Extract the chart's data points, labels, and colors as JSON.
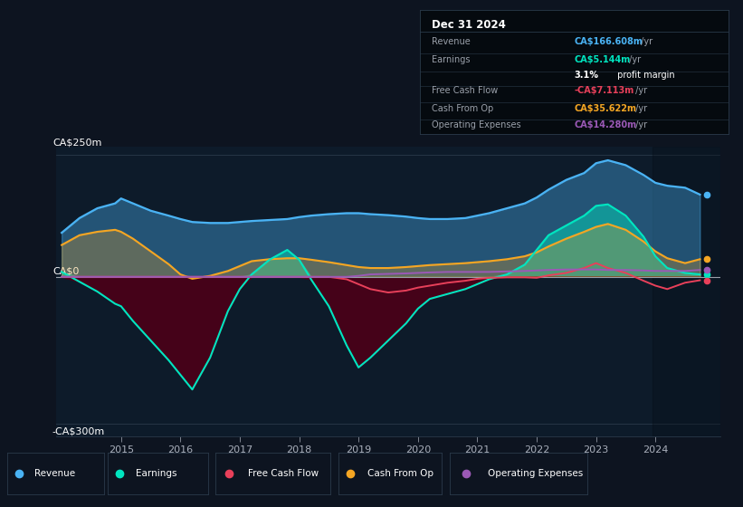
{
  "bg_color": "#0d1420",
  "plot_bg_color": "#0d1b2a",
  "colors": {
    "revenue": "#4ab3f4",
    "earnings": "#00e5c0",
    "free_cash_flow": "#e8405a",
    "cash_from_op": "#f5a623",
    "operating_expenses": "#9b59b6"
  },
  "ylabel_top": "CA$250m",
  "ylabel_zero": "CA$0",
  "ylabel_bottom": "-CA$300m",
  "year_ticks": [
    2015,
    2016,
    2017,
    2018,
    2019,
    2020,
    2021,
    2022,
    2023,
    2024
  ],
  "years": [
    2014.0,
    2014.3,
    2014.6,
    2014.9,
    2015.0,
    2015.2,
    2015.5,
    2015.8,
    2016.0,
    2016.2,
    2016.5,
    2016.8,
    2017.0,
    2017.2,
    2017.5,
    2017.8,
    2018.0,
    2018.2,
    2018.5,
    2018.8,
    2019.0,
    2019.2,
    2019.5,
    2019.8,
    2020.0,
    2020.2,
    2020.5,
    2020.8,
    2021.0,
    2021.2,
    2021.5,
    2021.8,
    2022.0,
    2022.2,
    2022.5,
    2022.8,
    2023.0,
    2023.2,
    2023.5,
    2023.8,
    2024.0,
    2024.2,
    2024.5,
    2024.75
  ],
  "revenue": [
    90,
    120,
    140,
    150,
    160,
    150,
    135,
    125,
    118,
    112,
    110,
    110,
    112,
    114,
    116,
    118,
    122,
    125,
    128,
    130,
    130,
    128,
    126,
    123,
    120,
    118,
    118,
    120,
    125,
    130,
    140,
    150,
    162,
    178,
    198,
    212,
    232,
    238,
    228,
    208,
    192,
    186,
    182,
    168
  ],
  "earnings": [
    10,
    -10,
    -30,
    -55,
    -60,
    -90,
    -130,
    -170,
    -200,
    -230,
    -165,
    -70,
    -25,
    5,
    35,
    55,
    35,
    -5,
    -60,
    -140,
    -185,
    -165,
    -130,
    -95,
    -65,
    -45,
    -35,
    -25,
    -15,
    -5,
    5,
    25,
    55,
    85,
    105,
    125,
    145,
    148,
    125,
    82,
    42,
    18,
    8,
    5
  ],
  "free_cash_flow": [
    0,
    0,
    0,
    0,
    0,
    0,
    0,
    0,
    0,
    0,
    0,
    0,
    0,
    0,
    0,
    0,
    0,
    0,
    0,
    -5,
    -15,
    -25,
    -32,
    -28,
    -22,
    -18,
    -12,
    -8,
    -4,
    -2,
    -1,
    -1,
    -2,
    3,
    8,
    18,
    28,
    18,
    8,
    -8,
    -18,
    -25,
    -12,
    -7
  ],
  "cash_from_op": [
    65,
    85,
    92,
    96,
    92,
    78,
    52,
    26,
    5,
    -4,
    2,
    12,
    22,
    32,
    36,
    38,
    38,
    35,
    30,
    24,
    20,
    18,
    18,
    20,
    22,
    24,
    26,
    28,
    30,
    32,
    36,
    42,
    50,
    62,
    78,
    92,
    102,
    108,
    96,
    72,
    52,
    38,
    28,
    36
  ],
  "operating_expenses": [
    0,
    0,
    0,
    0,
    0,
    0,
    0,
    0,
    0,
    0,
    0,
    0,
    0,
    0,
    0,
    0,
    0,
    0,
    0,
    0,
    2,
    5,
    6,
    7,
    8,
    9,
    10,
    10,
    10,
    10,
    11,
    12,
    13,
    14,
    15,
    15,
    15,
    14,
    14,
    13,
    12,
    12,
    12,
    14
  ],
  "info_box": {
    "title": "Dec 31 2024",
    "revenue_label": "Revenue",
    "revenue_value": "CA$166.608m",
    "earnings_label": "Earnings",
    "earnings_value": "CA$5.144m",
    "margin_pct": "3.1%",
    "margin_text": " profit margin",
    "fcf_label": "Free Cash Flow",
    "fcf_value": "-CA$7.113m",
    "cfop_label": "Cash From Op",
    "cfop_value": "CA$35.622m",
    "opex_label": "Operating Expenses",
    "opex_value": "CA$14.280m",
    "yr_suffix": " /yr"
  },
  "legend": [
    {
      "label": "Revenue",
      "color": "#4ab3f4"
    },
    {
      "label": "Earnings",
      "color": "#00e5c0"
    },
    {
      "label": "Free Cash Flow",
      "color": "#e8405a"
    },
    {
      "label": "Cash From Op",
      "color": "#f5a623"
    },
    {
      "label": "Operating Expenses",
      "color": "#9b59b6"
    }
  ]
}
